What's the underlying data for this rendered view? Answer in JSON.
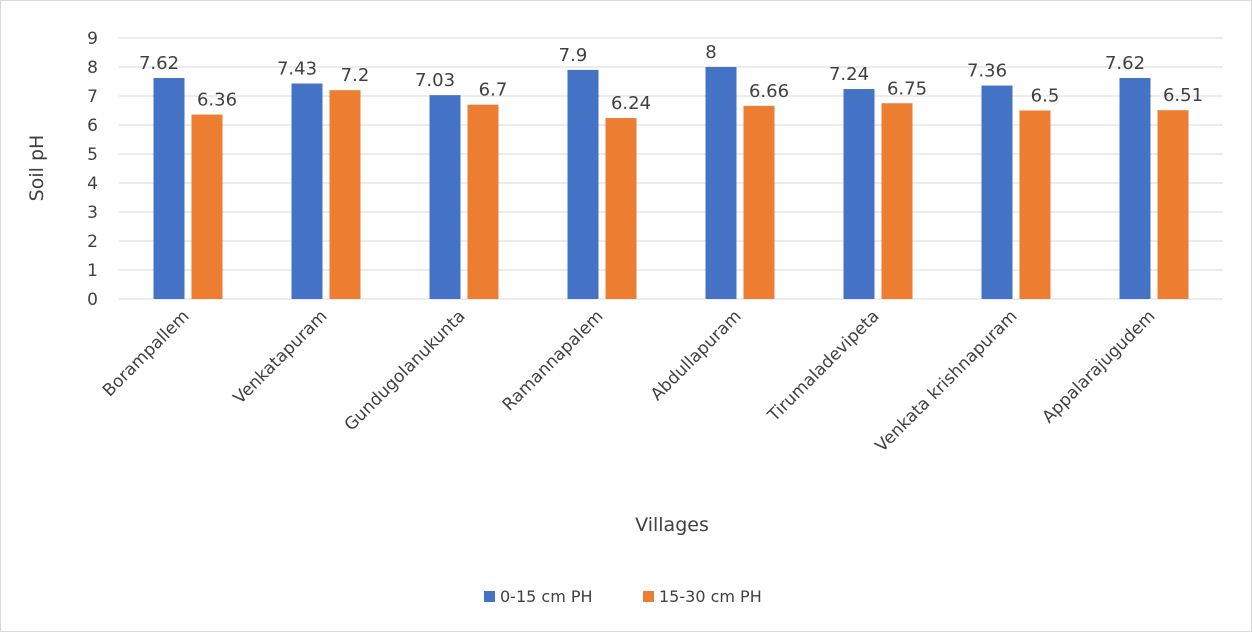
{
  "chart_data": {
    "type": "bar",
    "title": "",
    "xlabel": "Villages",
    "ylabel": "Soil pH",
    "ylim": [
      0,
      9
    ],
    "yticks": [
      0,
      1,
      2,
      3,
      4,
      5,
      6,
      7,
      8,
      9
    ],
    "grid": "horizontal",
    "legend_position": "bottom",
    "categories": [
      "Borampallem",
      "Venkatapuram",
      "Gundugolanukunta",
      "Ramannapalem",
      "Abdullapuram",
      "Tirumaladevipeta",
      "Venkata krishnapuram",
      "Appalarajugudem"
    ],
    "series": [
      {
        "name": "0-15 cm PH",
        "color": "#4472C4",
        "values": [
          7.62,
          7.43,
          7.03,
          7.9,
          8,
          7.24,
          7.36,
          7.62
        ]
      },
      {
        "name": "15-30 cm PH",
        "color": "#ED7D31",
        "values": [
          6.36,
          7.2,
          6.7,
          6.24,
          6.66,
          6.75,
          6.5,
          6.51
        ]
      }
    ]
  }
}
